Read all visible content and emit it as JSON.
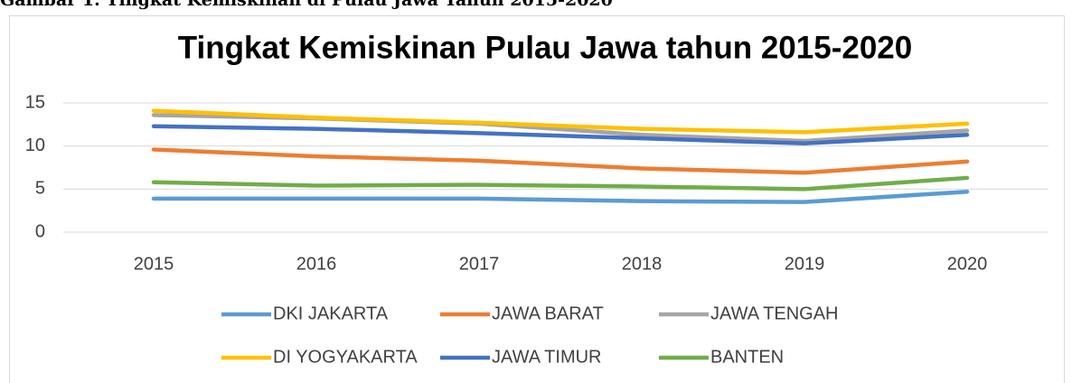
{
  "caption": "Gambar 1. Tingkat Kemiskinan di Pulau Jawa Tahun 2015-2020",
  "chart_data": {
    "type": "line",
    "title": "Tingkat Kemiskinan Pulau Jawa tahun 2015-2020",
    "categories": [
      "2015",
      "2016",
      "2017",
      "2018",
      "2019",
      "2020"
    ],
    "series": [
      {
        "name": "DKI JAKARTA",
        "color": "#5b9bd5",
        "values": [
          3.9,
          3.9,
          3.9,
          3.6,
          3.5,
          4.7
        ]
      },
      {
        "name": "JAWA BARAT",
        "color": "#ed7d31",
        "values": [
          9.6,
          8.8,
          8.3,
          7.4,
          6.9,
          8.2
        ]
      },
      {
        "name": "JAWA TENGAH",
        "color": "#a5a5a5",
        "values": [
          13.6,
          13.2,
          12.6,
          11.3,
          10.6,
          11.8
        ]
      },
      {
        "name": "DI YOGYAKARTA",
        "color": "#ffc000",
        "values": [
          14.1,
          13.3,
          12.7,
          12.0,
          11.6,
          12.6
        ]
      },
      {
        "name": "JAWA TIMUR",
        "color": "#4472c4",
        "values": [
          12.3,
          12.0,
          11.5,
          10.9,
          10.3,
          11.3
        ]
      },
      {
        "name": "BANTEN",
        "color": "#70ad47",
        "values": [
          5.8,
          5.4,
          5.5,
          5.3,
          5.0,
          6.3
        ]
      }
    ],
    "ylim": [
      0,
      15
    ],
    "yticks": [
      0,
      5,
      10,
      15
    ],
    "grid": true,
    "legend": "bottom"
  }
}
